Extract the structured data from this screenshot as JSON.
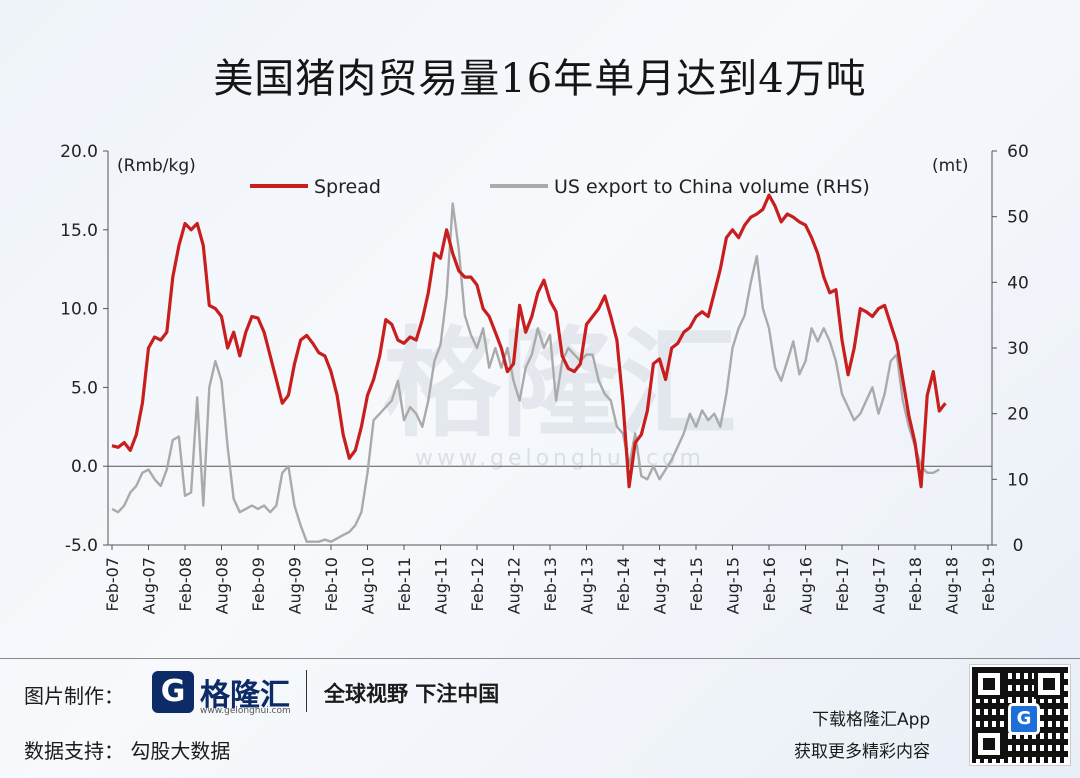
{
  "title": "美国猪肉贸易量16年单月达到4万吨",
  "footer": {
    "made_by_label": "图片制作：",
    "logo_name": "格隆汇",
    "logo_url": "www.gelonghui.com",
    "slogan": "全球视野 下注中国",
    "data_support_label": "数据支持：  勾股大数据",
    "download_line1": "下载格隆汇App",
    "download_line2": "获取更多精彩内容"
  },
  "watermark": {
    "text": "格隆汇",
    "url": "www.gelonghui.com"
  },
  "colors": {
    "spread": "#c81e1e",
    "volume": "#aaaaaa",
    "axis": "#555555",
    "brand": "#0d2b66"
  },
  "chart_data": {
    "type": "line",
    "left_axis_unit": "(Rmb/kg)",
    "right_axis_unit": "(mt)",
    "left_ticks": [
      "20.0",
      "15.0",
      "10.0",
      "5.0",
      "0.0",
      "-5.0"
    ],
    "right_ticks": [
      "60",
      "50",
      "40",
      "30",
      "20",
      "10",
      "0"
    ],
    "ylim_left": [
      -5,
      20
    ],
    "ylim_right": [
      0,
      60
    ],
    "x_tick_labels": [
      "Feb-07",
      "Aug-07",
      "Feb-08",
      "Aug-08",
      "Feb-09",
      "Aug-09",
      "Feb-10",
      "Aug-10",
      "Feb-11",
      "Aug-11",
      "Feb-12",
      "Aug-12",
      "Feb-13",
      "Aug-13",
      "Feb-14",
      "Aug-14",
      "Feb-15",
      "Aug-15",
      "Feb-16",
      "Aug-16",
      "Feb-17",
      "Aug-17",
      "Feb-18",
      "Aug-18",
      "Feb-19"
    ],
    "legend_position": "top",
    "grid": false,
    "series": [
      {
        "name": "Spread",
        "axis": "left",
        "color": "#c81e1e",
        "values": [
          1.3,
          1.2,
          1.5,
          1.0,
          2.0,
          4.0,
          7.5,
          8.2,
          8.0,
          8.5,
          12.0,
          14.0,
          15.4,
          15.0,
          15.4,
          14.0,
          10.2,
          10.0,
          9.5,
          7.5,
          8.5,
          7.0,
          8.5,
          9.5,
          9.4,
          8.5,
          7.0,
          5.5,
          4.0,
          4.5,
          6.5,
          8.0,
          8.3,
          7.8,
          7.2,
          7.0,
          6.0,
          4.5,
          2.0,
          0.5,
          1.0,
          2.5,
          4.5,
          5.5,
          7.0,
          9.3,
          9.0,
          8.0,
          7.8,
          8.2,
          8.0,
          9.3,
          11.0,
          13.5,
          13.2,
          15.0,
          13.5,
          12.4,
          12.0,
          12.0,
          11.5,
          10.0,
          9.5,
          8.5,
          7.5,
          6.0,
          6.5,
          10.2,
          8.5,
          9.5,
          11.0,
          11.8,
          10.5,
          9.8,
          7.0,
          6.2,
          6.0,
          6.5,
          9.0,
          9.5,
          10.0,
          10.8,
          9.5,
          8.0,
          4.0,
          -1.3,
          1.5,
          2.0,
          3.5,
          6.5,
          6.8,
          5.5,
          7.5,
          7.8,
          8.5,
          8.8,
          9.5,
          9.8,
          9.5,
          11.0,
          12.5,
          14.5,
          15.0,
          14.5,
          15.3,
          15.8,
          16.0,
          16.3,
          17.2,
          16.5,
          15.5,
          16.0,
          15.8,
          15.5,
          15.3,
          14.5,
          13.5,
          12.0,
          11.0,
          11.2,
          8.0,
          5.8,
          7.5,
          10.0,
          9.8,
          9.5,
          10.0,
          10.2,
          9.0,
          7.8,
          5.5,
          3.2,
          1.5,
          -1.3,
          4.5,
          6.0,
          3.5,
          4.0
        ]
      },
      {
        "name": "US export to China volume (RHS)",
        "axis": "right",
        "color": "#aaaaaa",
        "values": [
          5.5,
          5.0,
          6.0,
          8.0,
          9.0,
          11.0,
          11.5,
          10.0,
          9.0,
          11.5,
          16.0,
          16.5,
          7.5,
          8.0,
          22.5,
          6.0,
          24.0,
          28.0,
          25.0,
          15.0,
          7.0,
          5.0,
          5.5,
          6.0,
          5.5,
          6.0,
          5.0,
          6.0,
          11.0,
          12.0,
          6.0,
          3.0,
          0.5,
          0.5,
          0.5,
          0.8,
          0.5,
          1.0,
          1.5,
          2.0,
          3.0,
          5.0,
          11.0,
          19.0,
          20.0,
          21.0,
          22.0,
          25.0,
          19.0,
          21.0,
          20.0,
          18.0,
          22.0,
          28.0,
          30.5,
          38.0,
          52.0,
          45.0,
          35.0,
          32.0,
          30.0,
          33.0,
          27.0,
          30.0,
          27.0,
          30.0,
          25.0,
          22.0,
          27.0,
          29.0,
          33.0,
          30.0,
          32.0,
          22.0,
          28.0,
          30.0,
          29.0,
          28.0,
          29.0,
          29.0,
          25.0,
          23.0,
          22.0,
          18.0,
          17.0,
          12.0,
          17.0,
          10.5,
          10.0,
          12.0,
          10.0,
          11.5,
          13.0,
          15.0,
          17.0,
          20.0,
          18.0,
          20.5,
          19.0,
          20.0,
          18.0,
          23.0,
          30.0,
          33.0,
          35.0,
          40.0,
          44.0,
          36.0,
          33.0,
          27.0,
          25.0,
          28.0,
          31.0,
          26.0,
          28.0,
          33.0,
          31.0,
          33.0,
          31.0,
          28.0,
          23.0,
          21.0,
          19.0,
          20.0,
          22.0,
          24.0,
          20.0,
          23.0,
          28.0,
          29.0,
          22.0,
          18.0,
          15.0,
          12.0,
          11.0,
          11.0,
          11.5
        ]
      }
    ]
  }
}
